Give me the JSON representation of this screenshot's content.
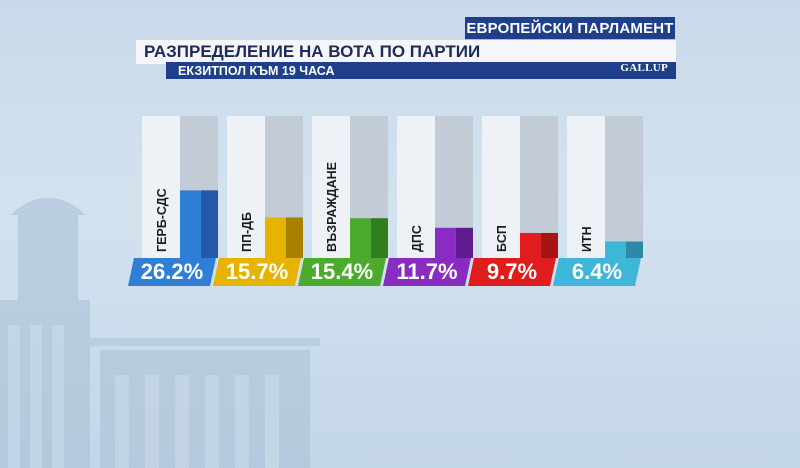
{
  "header": {
    "top": "ЕВРОПЕЙСКИ ПАРЛАМЕНТ",
    "title": "РАЗПРЕДЕЛЕНИЕ НА ВОТА ПО ПАРТИИ",
    "subtitle": "ЕКЗИТПОЛ КЪМ 19 ЧАСА",
    "logo": "GALLUP"
  },
  "chart_data": {
    "type": "bar",
    "categories": [
      "ГЕРБ-СДС",
      "ПП-ДБ",
      "ВЪЗРАЖДАНЕ",
      "ДПС",
      "БСП",
      "ИТН"
    ],
    "values": [
      26.2,
      15.7,
      15.4,
      11.7,
      9.7,
      6.4
    ],
    "value_labels": [
      "26.2%",
      "15.7%",
      "15.4%",
      "11.7%",
      "9.7%",
      "6.4%"
    ],
    "colors": [
      "#2f7fd6",
      "#e6b400",
      "#4caa2c",
      "#8a2cc2",
      "#e01d1d",
      "#3db6d8"
    ],
    "dark_colors": [
      "#2459a8",
      "#a88000",
      "#2f7e1c",
      "#5f1b8f",
      "#a81414",
      "#2a8aa8"
    ],
    "title": "РАЗПРЕДЕЛЕНИЕ НА ВОТА ПО ПАРТИИ",
    "xlabel": "",
    "ylabel": "",
    "ylim": [
      0,
      55
    ],
    "grid": false,
    "legend": "none"
  }
}
